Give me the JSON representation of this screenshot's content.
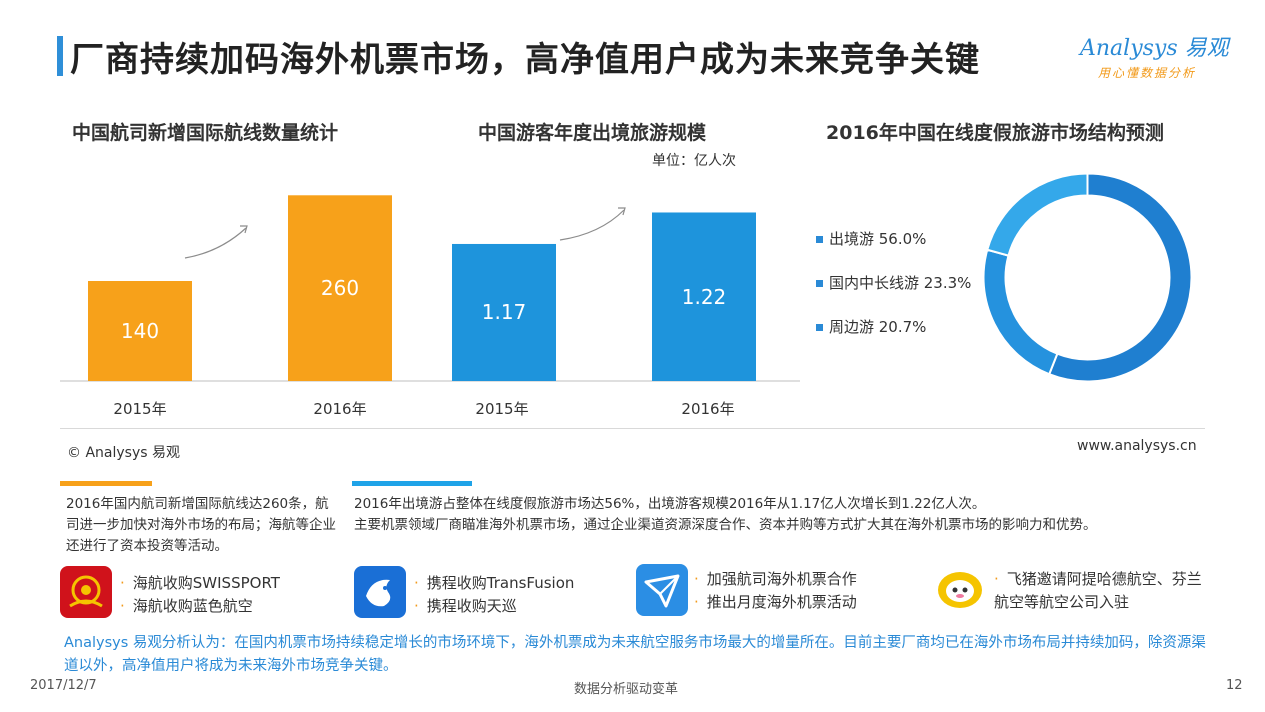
{
  "header": {
    "title": "厂商持续加码海外机票市场，高净值用户成为未来竞争关键",
    "logo_text": "Analysys 易观",
    "logo_slogan": "用心懂数据分析"
  },
  "chart_data": [
    {
      "type": "bar",
      "title": "中国航司新增国际航线数量统计",
      "categories": [
        "2015年",
        "2016年"
      ],
      "values": [
        140,
        260
      ],
      "color": "#f7a11a",
      "ylim": [
        0,
        280
      ]
    },
    {
      "type": "bar",
      "title": "中国游客年度出境旅游规模",
      "unit": "单位：亿人次",
      "categories": [
        "2015年",
        "2016年"
      ],
      "values": [
        1.17,
        1.22
      ],
      "value_labels": [
        "1.17",
        "1.22"
      ],
      "color": "#1e94dc"
    },
    {
      "type": "pie",
      "title": "2016年中国在线度假旅游市场结构预测",
      "labels": [
        "出境游",
        "国内中长线游",
        "周边游"
      ],
      "values": [
        56.0,
        23.3,
        20.7
      ],
      "legend_labels": [
        "出境游 56.0%",
        "国内中长线游 23.3%",
        "周边游 20.7%"
      ],
      "colors": [
        "#1f7fd0",
        "#2592de",
        "#34a8ea"
      ]
    }
  ],
  "source": {
    "copyright": "© Analysys 易观",
    "url": "www.analysys.cn"
  },
  "desc_left": "2016年国内航司新增国际航线达260条，航司进一步加快对海外市场的布局；海航等企业还进行了资本投资等活动。",
  "desc_right_line1": "2016年出境游占整体在线度假旅游市场达56%，出境游客规模2016年从1.17亿人次增长到1.22亿人次。",
  "desc_right_line2": "主要机票领域厂商瞄准海外机票市场，通过企业渠道资源深度合作、资本并购等方式扩大其在海外机票市场的影响力和优势。",
  "brands": [
    {
      "icon": "hna-logo-icon",
      "lines": [
        "海航收购SWISSPORT",
        "海航收购蓝色航空"
      ]
    },
    {
      "icon": "ctrip-logo-icon",
      "lines": [
        "携程收购TransFusion",
        "携程收购天巡"
      ]
    },
    {
      "icon": "qunar-plane-logo-icon",
      "lines": [
        "加强航司海外机票合作",
        "推出月度海外机票活动"
      ]
    },
    {
      "icon": "fliggy-logo-icon",
      "lines": [
        "飞猪邀请阿提哈德航空、芬兰航空等航空公司入驻"
      ]
    }
  ],
  "conclusion": "Analysys 易观分析认为：在国内机票市场持续稳定增长的市场环境下，海外机票成为未来航空服务市场最大的增量所在。目前主要厂商均已在海外市场布局并持续加码，除资源渠道以外，高净值用户将成为未来海外市场竞争关键。",
  "footer": {
    "date": "2017/12/7",
    "slogan": "数据分析驱动变革",
    "page": "12"
  }
}
